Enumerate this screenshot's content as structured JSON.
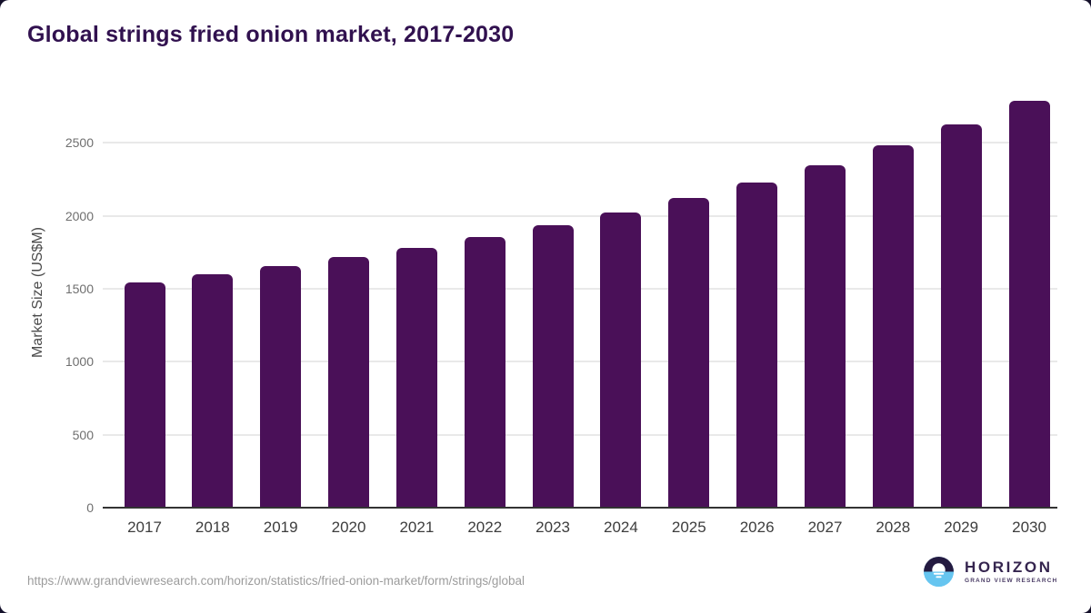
{
  "title": "Global strings fried onion market, 2017-2030",
  "footer": {
    "source_url": "https://www.grandviewresearch.com/horizon/statistics/fried-onion-market/form/strings/global",
    "logo": {
      "name": "HORIZON",
      "subtitle": "GRAND VIEW RESEARCH"
    }
  },
  "colors": {
    "bar": "#4a1058",
    "title": "#31114f",
    "gridline": "#e9e9e9",
    "axis_line": "#333333",
    "tick_label": "#6f6f6f",
    "axis_label": "#4a4a4a",
    "x_label": "#3d3d3d",
    "url_text": "#9c9c9c",
    "logo_dark": "#241a40",
    "logo_blue": "#66c5f0",
    "logo_text": "#35254f",
    "logo_subtext": "#4b3d66"
  },
  "chart_data": {
    "type": "bar",
    "title": "Global strings fried onion market, 2017-2030",
    "categories": [
      "2017",
      "2018",
      "2019",
      "2020",
      "2021",
      "2022",
      "2023",
      "2024",
      "2025",
      "2026",
      "2027",
      "2028",
      "2029",
      "2030"
    ],
    "values": [
      1545,
      1600,
      1655,
      1715,
      1780,
      1855,
      1935,
      2020,
      2120,
      2225,
      2345,
      2480,
      2625,
      2790
    ],
    "xlabel": "",
    "ylabel": "Market Size (US$M)",
    "ylim": [
      0,
      2875
    ],
    "yticks": [
      0,
      500,
      1000,
      1500,
      2000,
      2500
    ],
    "grid": true,
    "legend": false
  }
}
